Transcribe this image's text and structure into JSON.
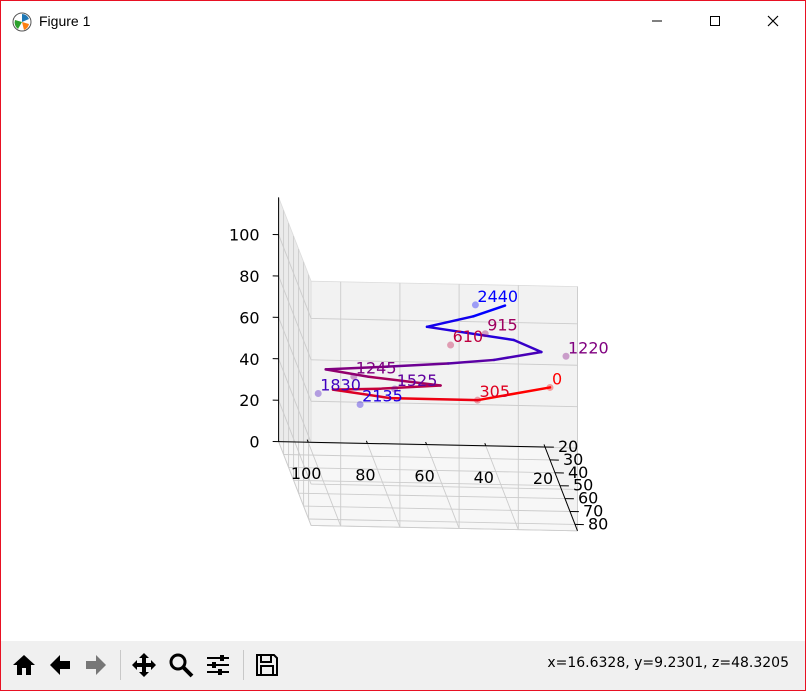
{
  "window": {
    "title": "Figure 1",
    "accent_color": "#e81123",
    "controls": [
      "minimize-icon",
      "maximize-icon",
      "close-icon"
    ]
  },
  "toolbar": {
    "buttons": [
      "home-icon",
      "back-icon",
      "forward-icon",
      "pan-icon",
      "zoom-icon",
      "configure-subplots-icon",
      "save-icon"
    ],
    "status": "x=16.6328, y=9.2301, z=48.3205"
  },
  "chart_data": {
    "type": "line",
    "projection": "3d",
    "grid": true,
    "x_ticks": [
      "100",
      "80",
      "60",
      "40",
      "20"
    ],
    "y_ticks": [
      "20",
      "30",
      "40",
      "50",
      "60",
      "70",
      "80"
    ],
    "z_ticks": [
      "0",
      "20",
      "40",
      "60",
      "80",
      "100"
    ],
    "color_start": "#ff0000",
    "color_end": "#0000ff",
    "series": [
      {
        "values": [
          [
            20,
            30,
            35
          ],
          [
            45,
            33,
            30
          ],
          [
            75,
            36,
            32
          ],
          [
            95,
            40,
            38
          ],
          [
            80,
            45,
            42
          ],
          [
            60,
            48,
            46
          ],
          [
            85,
            52,
            52
          ],
          [
            100,
            55,
            57
          ],
          [
            80,
            60,
            62
          ],
          [
            60,
            63,
            66
          ],
          [
            45,
            66,
            70
          ],
          [
            30,
            72,
            78
          ],
          [
            40,
            76,
            86
          ],
          [
            70,
            80,
            94
          ],
          [
            55,
            84,
            102
          ],
          [
            45,
            88,
            110
          ]
        ]
      }
    ],
    "labels": [
      {
        "text": "0",
        "point": [
          20,
          30,
          35
        ]
      },
      {
        "text": "305",
        "point": [
          45,
          33,
          30
        ]
      },
      {
        "text": "2135",
        "point": [
          85,
          35,
          28
        ]
      },
      {
        "text": "1830",
        "point": [
          100,
          40,
          36
        ]
      },
      {
        "text": "1525",
        "point": [
          75,
          45,
          42
        ]
      },
      {
        "text": "1245",
        "point": [
          90,
          52,
          52
        ]
      },
      {
        "text": "1220",
        "point": [
          20,
          62,
          70
        ]
      },
      {
        "text": "610",
        "point": [
          60,
          68,
          78
        ]
      },
      {
        "text": "915",
        "point": [
          50,
          78,
          90
        ]
      },
      {
        "text": "2440",
        "point": [
          55,
          88,
          110
        ]
      }
    ]
  }
}
